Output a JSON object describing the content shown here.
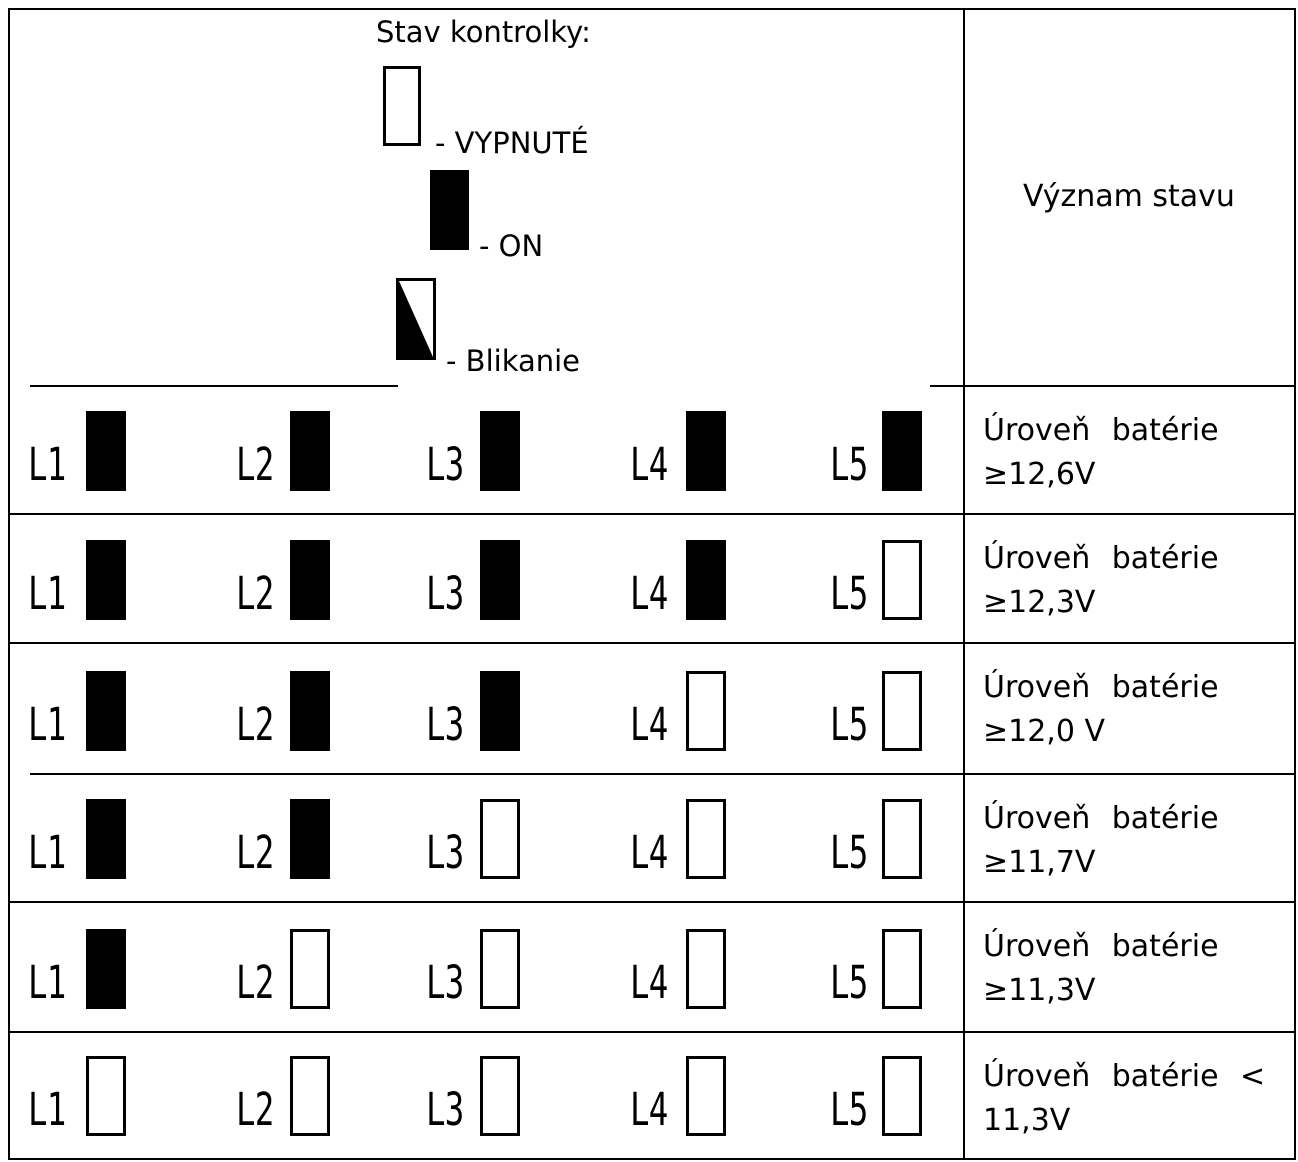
{
  "legend": {
    "title": "Stav kontrolky:",
    "off_label": "- VYPNUTÉ",
    "on_label": "- ON",
    "blink_label": "- Blikanie"
  },
  "meaning_header": "Význam stavu",
  "led_labels": [
    "L1",
    "L2",
    "L3",
    "L4",
    "L5"
  ],
  "rows": [
    {
      "states": [
        "on",
        "on",
        "on",
        "on",
        "on"
      ],
      "meaning_line1": "Úroveň batérie",
      "meaning_line2": "≥12,6V"
    },
    {
      "states": [
        "on",
        "on",
        "on",
        "on",
        "off"
      ],
      "meaning_line1": "Úroveň batérie",
      "meaning_line2": "≥12,3V"
    },
    {
      "states": [
        "on",
        "on",
        "on",
        "off",
        "off"
      ],
      "meaning_line1": "Úroveň batérie",
      "meaning_line2": "≥12,0 V"
    },
    {
      "states": [
        "on",
        "on",
        "off",
        "off",
        "off"
      ],
      "meaning_line1": "Úroveň batérie",
      "meaning_line2": "≥11,7V"
    },
    {
      "states": [
        "on",
        "off",
        "off",
        "off",
        "off"
      ],
      "meaning_line1": "Úroveň batérie",
      "meaning_line2": "≥11,3V"
    },
    {
      "states": [
        "off",
        "off",
        "off",
        "off",
        "off"
      ],
      "meaning_line1": "Úroveň batérie  <",
      "meaning_line2": "11,3V"
    }
  ]
}
